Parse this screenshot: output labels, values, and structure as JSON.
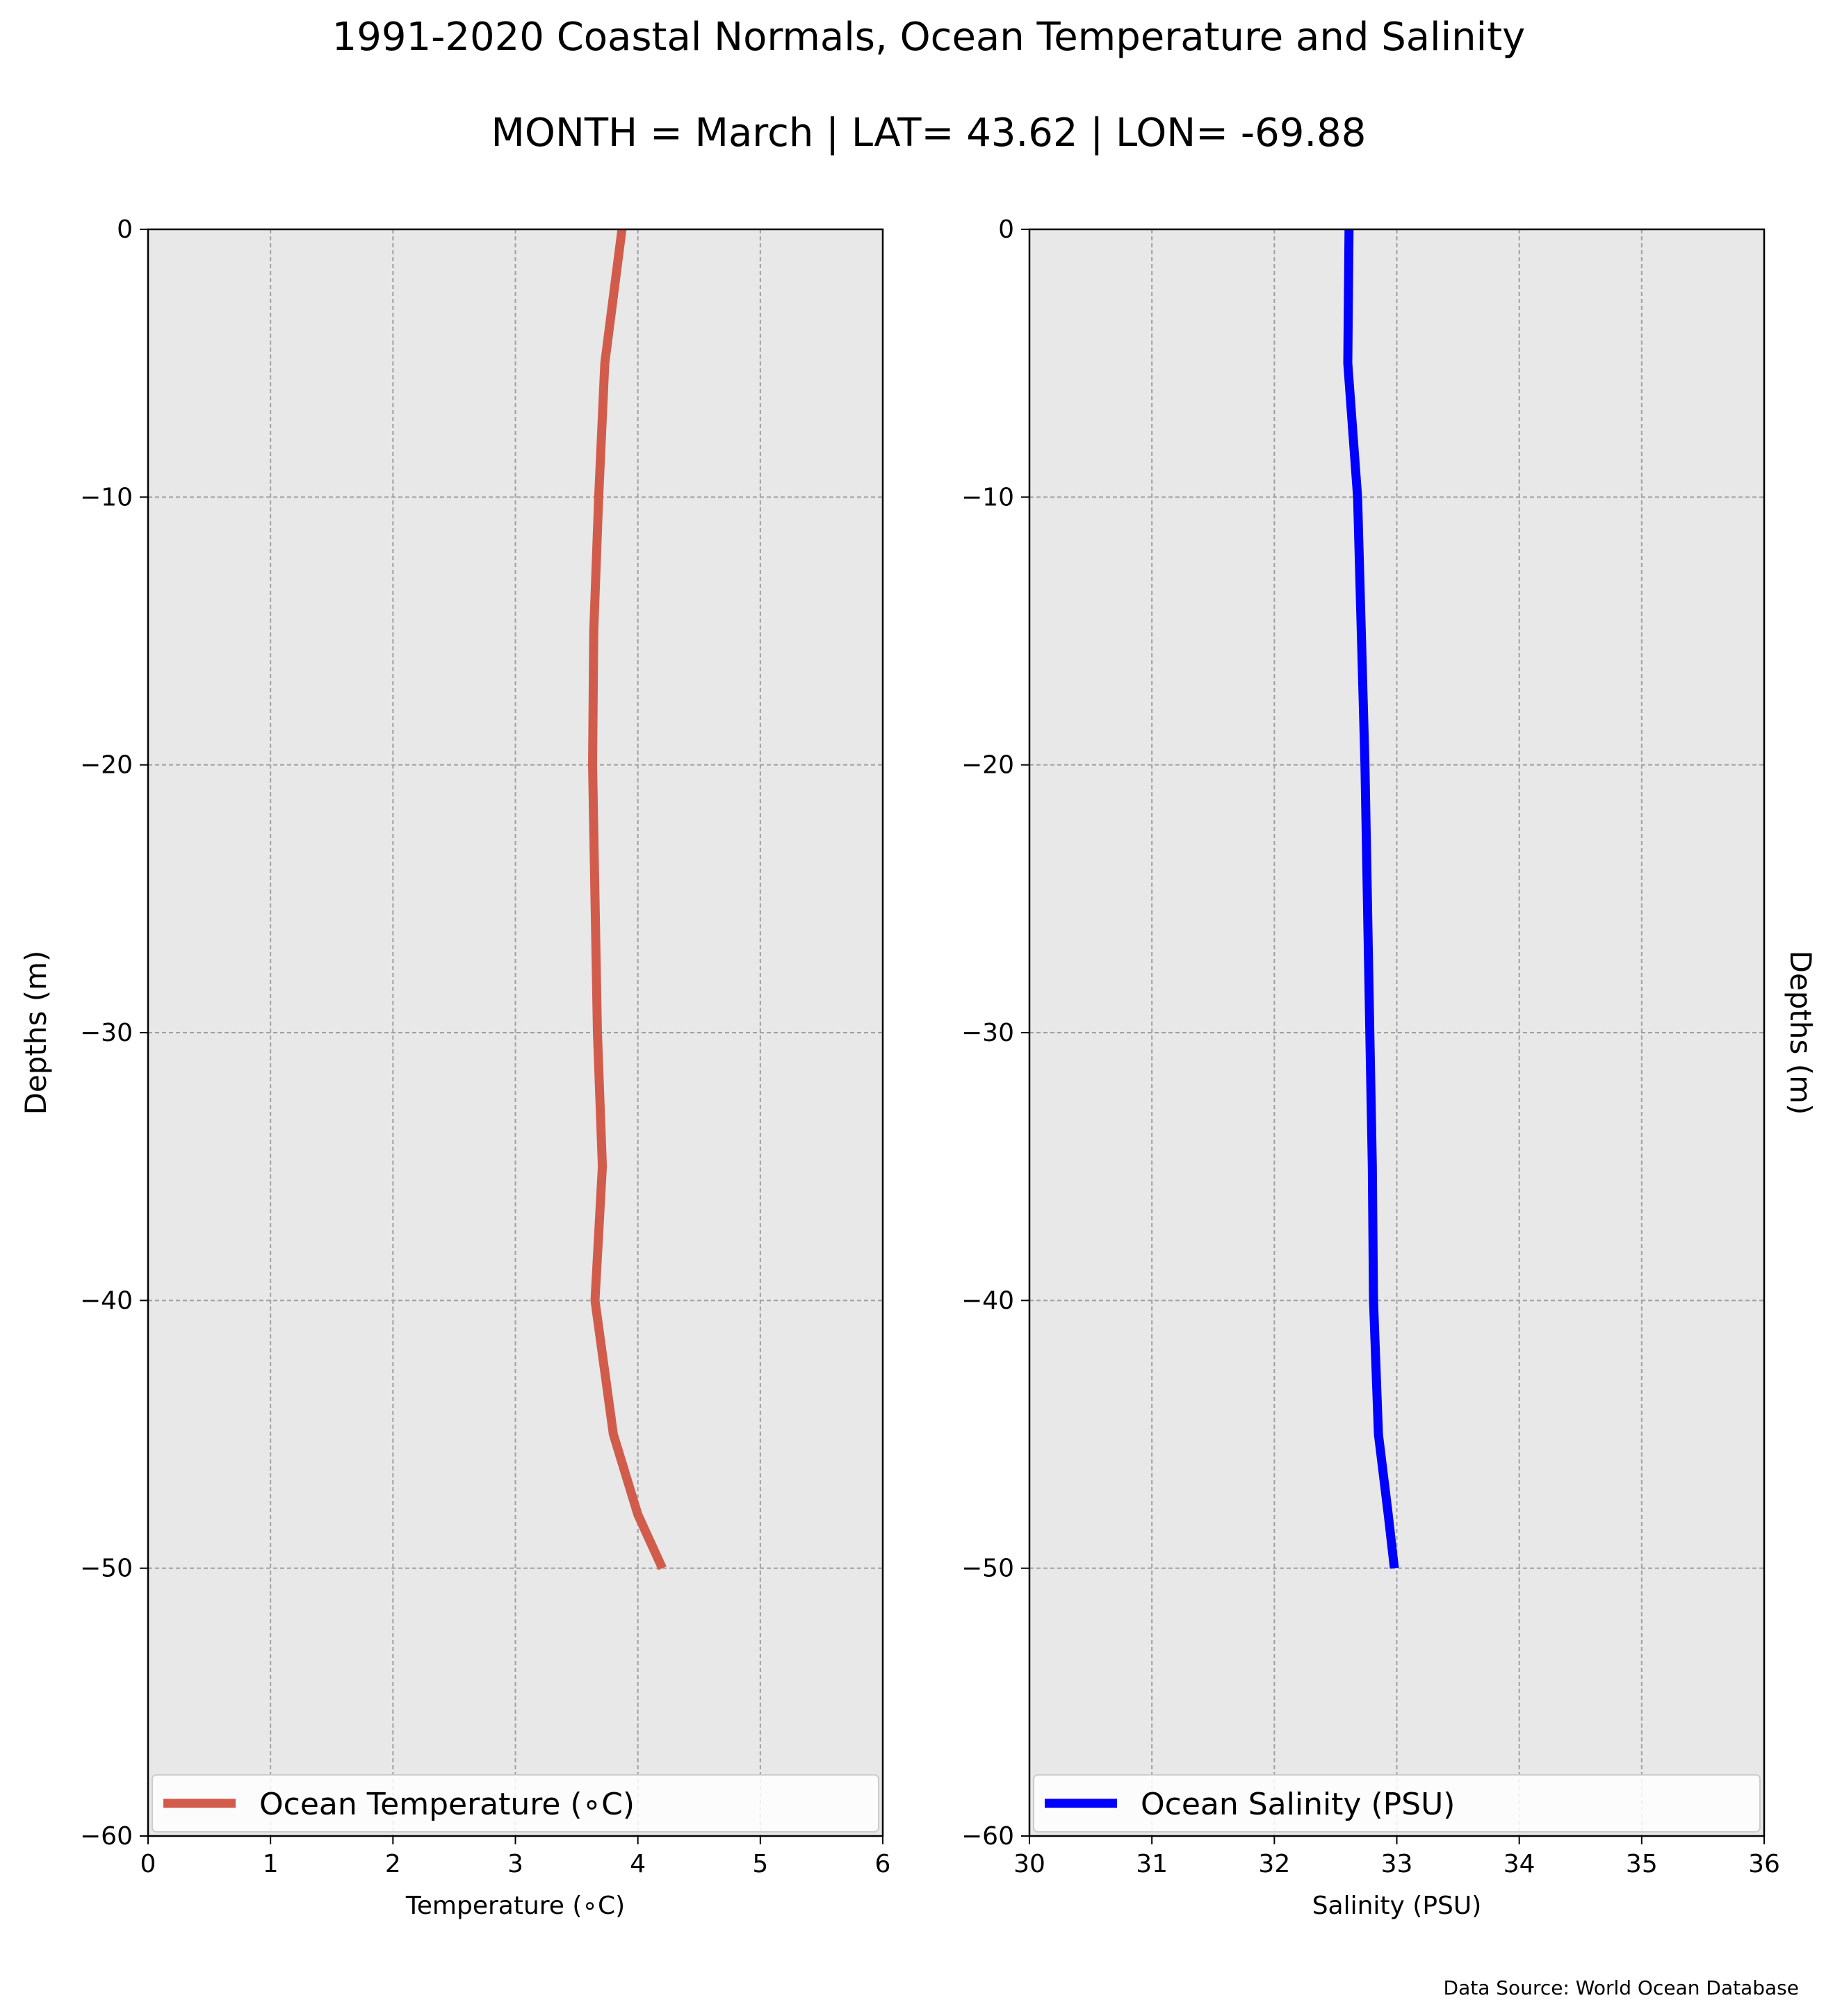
{
  "figure": {
    "title_line1": "1991-2020 Coastal Normals, Ocean Temperature and Salinity",
    "title_line2": "MONTH = March | LAT= 43.62 | LON= -69.88",
    "source_note": "Data Source: World Ocean Database",
    "background_color": "#e8e8e8",
    "grid_color": "#a0a0a0"
  },
  "chart_data": [
    {
      "type": "line",
      "title": "",
      "xlabel": "Temperature (∘C)",
      "ylabel": "Depths (m)",
      "xlim": [
        0,
        6
      ],
      "ylim": [
        -60,
        0
      ],
      "xticks": [
        "0",
        "1",
        "2",
        "3",
        "4",
        "5",
        "6"
      ],
      "yticks": [
        "0",
        "−10",
        "−20",
        "−30",
        "−40",
        "−50",
        "−60"
      ],
      "grid": true,
      "legend": "lower-center",
      "series": [
        {
          "name": "Ocean Temperature (∘C)",
          "color": "#d25c4b",
          "x": [
            3.87,
            3.73,
            3.68,
            3.64,
            3.63,
            3.65,
            3.67,
            3.71,
            3.65,
            3.8,
            4.0,
            4.2
          ],
          "y": [
            0,
            -5,
            -10,
            -15,
            -20,
            -25,
            -30,
            -35,
            -40,
            -45,
            -48,
            -50
          ]
        }
      ]
    },
    {
      "type": "line",
      "title": "",
      "xlabel": "Salinity (PSU)",
      "ylabel": "Depths (m)",
      "xlim": [
        30,
        36
      ],
      "ylim": [
        -60,
        0
      ],
      "xticks": [
        "30",
        "31",
        "32",
        "33",
        "34",
        "35",
        "36"
      ],
      "yticks": [
        "0",
        "−10",
        "−20",
        "−30",
        "−40",
        "−50",
        "−60"
      ],
      "grid": true,
      "legend": "lower-center",
      "series": [
        {
          "name": "Ocean Salinity (PSU)",
          "color": "#0000ff",
          "x": [
            32.61,
            32.6,
            32.68,
            32.71,
            32.74,
            32.76,
            32.78,
            32.8,
            32.81,
            32.85,
            32.93,
            32.98
          ],
          "y": [
            0,
            -5,
            -10,
            -15,
            -20,
            -25,
            -30,
            -35,
            -40,
            -45,
            -48,
            -50
          ]
        }
      ]
    }
  ]
}
